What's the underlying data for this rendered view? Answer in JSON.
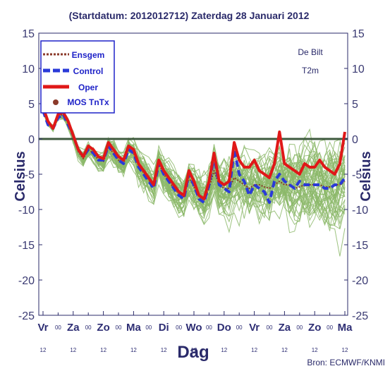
{
  "chart_data": {
    "type": "line",
    "title": "(Startdatum: 2012012712)   Zaterdag  28 Januari   2012",
    "xlabel": "Dag",
    "ylabel": "Celsius",
    "ylim": [
      -25,
      15
    ],
    "yticks": [
      15,
      10,
      5,
      0,
      -5,
      -10,
      -15,
      -20,
      -25
    ],
    "xlim": [
      0,
      30
    ],
    "day_ticks": [
      {
        "x": 0,
        "label": "Vr"
      },
      {
        "x": 3,
        "label": "Za"
      },
      {
        "x": 6,
        "label": "Zo"
      },
      {
        "x": 9,
        "label": "Ma"
      },
      {
        "x": 12,
        "label": "Di"
      },
      {
        "x": 15,
        "label": "Wo"
      },
      {
        "x": 18,
        "label": "Do"
      },
      {
        "x": 21,
        "label": "Vr"
      },
      {
        "x": 24,
        "label": "Za"
      },
      {
        "x": 27,
        "label": "Zo"
      },
      {
        "x": 30,
        "label": "Ma"
      }
    ],
    "mid_tick_label": "00",
    "hour_label": "12",
    "annotation_location": "De Bilt",
    "annotation_variable": "T2m",
    "source": "Bron: ECMWF/KNMI",
    "grid": false,
    "legend_position": "top-left",
    "legend": [
      {
        "name": "Ensgem",
        "color": "#8b3a2a",
        "style": "dotted"
      },
      {
        "name": "Control",
        "color": "#2a3ad8",
        "style": "dashed"
      },
      {
        "name": "Oper",
        "color": "#e01818",
        "style": "solid"
      },
      {
        "name": "MOS TnTx",
        "color": "#8b3a2a",
        "style": "dot"
      }
    ],
    "x": [
      0,
      0.5,
      1,
      1.5,
      2,
      2.5,
      3,
      3.5,
      4,
      4.5,
      5,
      5.5,
      6,
      6.5,
      7,
      7.5,
      8,
      8.5,
      9,
      9.5,
      10,
      10.5,
      11,
      11.5,
      12,
      12.5,
      13,
      13.5,
      14,
      14.5,
      15,
      15.5,
      16,
      16.5,
      17,
      17.5,
      18,
      18.5,
      19,
      19.5,
      20,
      20.5,
      21,
      21.5,
      22,
      22.5,
      23,
      23.5,
      24,
      24.5,
      25,
      25.5,
      26,
      26.5,
      27,
      27.5,
      28,
      28.5,
      29,
      29.5,
      30
    ],
    "series": [
      {
        "name": "Oper",
        "color": "#e01818",
        "values": [
          4.5,
          2.5,
          1.5,
          3.5,
          3.8,
          2.5,
          0.5,
          -1.5,
          -2.5,
          -1.0,
          -1.5,
          -2.5,
          -2.8,
          -0.5,
          -1.5,
          -2.5,
          -3.0,
          -1.0,
          -1.5,
          -3.5,
          -4.5,
          -5.5,
          -6.5,
          -3.0,
          -4.5,
          -5.5,
          -6.5,
          -7.5,
          -8.0,
          -4.5,
          -6.0,
          -8.0,
          -8.5,
          -6.0,
          -2.0,
          -6.0,
          -6.5,
          -6.0,
          -0.5,
          -3.0,
          -4.0,
          -4.0,
          -3.0,
          -4.5,
          -5.0,
          -5.5,
          -3.5,
          1.0,
          -3.5,
          -4.0,
          -4.5,
          -5.0,
          -3.5,
          -4.0,
          -4.0,
          -3.0,
          -4.0,
          -4.5,
          -5.0,
          -3.5,
          1.0
        ]
      },
      {
        "name": "Control",
        "color": "#2a3ad8",
        "values": [
          4.0,
          2.0,
          1.5,
          3.0,
          3.5,
          2.0,
          0.5,
          -1.5,
          -2.5,
          -1.5,
          -2.0,
          -3.0,
          -3.0,
          -1.0,
          -2.0,
          -3.0,
          -3.5,
          -1.5,
          -2.0,
          -4.0,
          -5.0,
          -6.0,
          -7.0,
          -3.5,
          -5.0,
          -6.0,
          -7.0,
          -8.0,
          -8.5,
          -5.0,
          -6.5,
          -8.5,
          -9.0,
          -6.5,
          -2.5,
          -6.5,
          -7.0,
          -7.5,
          -1.5,
          -5.0,
          -6.0,
          -8.0,
          -6.5,
          -7.0,
          -7.5,
          -9.0,
          -6.0,
          -5.0,
          -6.0,
          -6.5,
          -7.0,
          -6.0,
          -6.5,
          -6.5,
          -6.5,
          -6.5,
          -7.0,
          -7.0,
          -6.5,
          -6.5,
          -5.5
        ]
      },
      {
        "name": "Ensgem",
        "color": "#8b3a2a",
        "values": [
          4.0,
          2.2,
          1.5,
          3.2,
          3.5,
          2.2,
          0.3,
          -1.8,
          -2.8,
          -1.5,
          -2.0,
          -3.0,
          -3.2,
          -1.2,
          -2.0,
          -3.0,
          -3.5,
          -1.5,
          -2.0,
          -3.8,
          -4.8,
          -5.8,
          -6.8,
          -3.5,
          -5.0,
          -6.0,
          -7.0,
          -7.8,
          -8.2,
          -5.5,
          -6.8,
          -8.0,
          -8.5,
          -7.0,
          -4.5,
          -6.5,
          -7.0,
          -7.0,
          -5.5,
          -6.0,
          -6.5,
          -7.0,
          -6.5,
          -6.5,
          -6.8,
          -7.0,
          -6.5,
          -6.0,
          -6.5,
          -6.5,
          -7.0,
          -6.8,
          -6.5,
          -6.5,
          -6.5,
          -6.5,
          -6.8,
          -6.8,
          -6.5,
          -6.5,
          -6.0
        ]
      }
    ],
    "ensemble_members": 50,
    "ensemble_color": "#8cb86a",
    "zero_line_color": "#3e5a3e",
    "dark_text_color": "#2a2a6a"
  }
}
